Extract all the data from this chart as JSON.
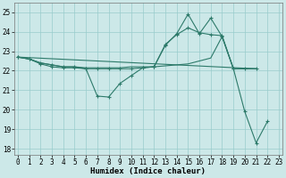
{
  "xlabel": "Humidex (Indice chaleur)",
  "bg_color": "#cce8e8",
  "grid_color": "#99cccc",
  "line_color": "#2d7a6a",
  "yticks": [
    18,
    19,
    20,
    21,
    22,
    23,
    24,
    25
  ],
  "xticks": [
    0,
    1,
    2,
    3,
    4,
    5,
    6,
    7,
    8,
    9,
    10,
    11,
    12,
    13,
    14,
    15,
    16,
    17,
    18,
    19,
    20,
    21,
    22,
    23
  ],
  "xlim": [
    -0.3,
    23.3
  ],
  "ylim": [
    17.7,
    25.5
  ],
  "line1_x": [
    0,
    1,
    2,
    3,
    4,
    5,
    6,
    7,
    8,
    9,
    10,
    11,
    12,
    13,
    14,
    15,
    16,
    17,
    18,
    19,
    20,
    21,
    22
  ],
  "line1_y": [
    22.7,
    22.6,
    22.4,
    22.3,
    22.2,
    22.2,
    22.1,
    20.7,
    20.65,
    21.35,
    21.75,
    22.15,
    22.2,
    23.35,
    23.85,
    24.2,
    23.95,
    23.85,
    23.8,
    22.1,
    19.9,
    18.3,
    19.4
  ],
  "line2_x": [
    0,
    1,
    2,
    3,
    4,
    5,
    6,
    7,
    8,
    9,
    10,
    11,
    12,
    13,
    14,
    15,
    16,
    17,
    18,
    19,
    20,
    21
  ],
  "line2_y": [
    22.7,
    22.6,
    22.4,
    22.3,
    22.2,
    22.2,
    22.15,
    22.15,
    22.15,
    22.15,
    22.2,
    22.2,
    22.2,
    22.25,
    22.3,
    22.35,
    22.5,
    22.65,
    23.75,
    22.1,
    22.1,
    22.1
  ],
  "line3_x": [
    0,
    1,
    2,
    3,
    4,
    5,
    6,
    7,
    8,
    9,
    10,
    11,
    12,
    13,
    14,
    15,
    16,
    17,
    18,
    19,
    20,
    21
  ],
  "line3_y": [
    22.7,
    22.6,
    22.35,
    22.2,
    22.15,
    22.15,
    22.1,
    22.1,
    22.1,
    22.1,
    22.1,
    22.15,
    22.2,
    23.3,
    23.9,
    24.9,
    23.9,
    24.7,
    23.75,
    22.1,
    22.1,
    22.1
  ],
  "line4_x": [
    0,
    21
  ],
  "line4_y": [
    22.7,
    22.1
  ]
}
